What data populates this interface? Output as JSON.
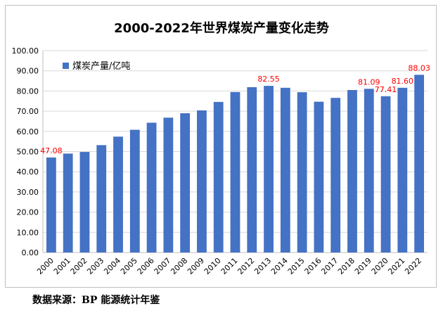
{
  "chart_data": {
    "type": "bar",
    "title": "2000-2022年世界煤炭产量变化走势",
    "legend": {
      "label": "煤炭产量/亿吨",
      "placement": "top-left"
    },
    "categories": [
      "2000",
      "2001",
      "2002",
      "2003",
      "2004",
      "2005",
      "2006",
      "2007",
      "2008",
      "2009",
      "2010",
      "2011",
      "2012",
      "2013",
      "2014",
      "2015",
      "2016",
      "2017",
      "2018",
      "2019",
      "2020",
      "2021",
      "2022"
    ],
    "series": [
      {
        "name": "煤炭产量/亿吨",
        "values": [
          47.08,
          49.0,
          49.8,
          53.2,
          57.4,
          60.8,
          64.3,
          66.8,
          69.0,
          70.4,
          74.6,
          79.5,
          81.9,
          82.55,
          81.6,
          79.4,
          74.7,
          76.6,
          80.5,
          81.09,
          77.41,
          81.6,
          88.03
        ],
        "data_labels": {
          "0": "47.08",
          "13": "82.55",
          "19": "81.09",
          "20": "77.41",
          "21": "81.60",
          "22": "88.03"
        }
      }
    ],
    "ylim": [
      0,
      100
    ],
    "yticks": [
      "0.00",
      "10.00",
      "20.00",
      "30.00",
      "40.00",
      "50.00",
      "60.00",
      "70.00",
      "80.00",
      "90.00",
      "100.00"
    ],
    "grid": true,
    "colors": {
      "bar": "#4472c4",
      "data_label": "#ff0000",
      "grid": "#d9d9d9"
    }
  },
  "source_note": "数据来源：BP 能源统计年鉴"
}
